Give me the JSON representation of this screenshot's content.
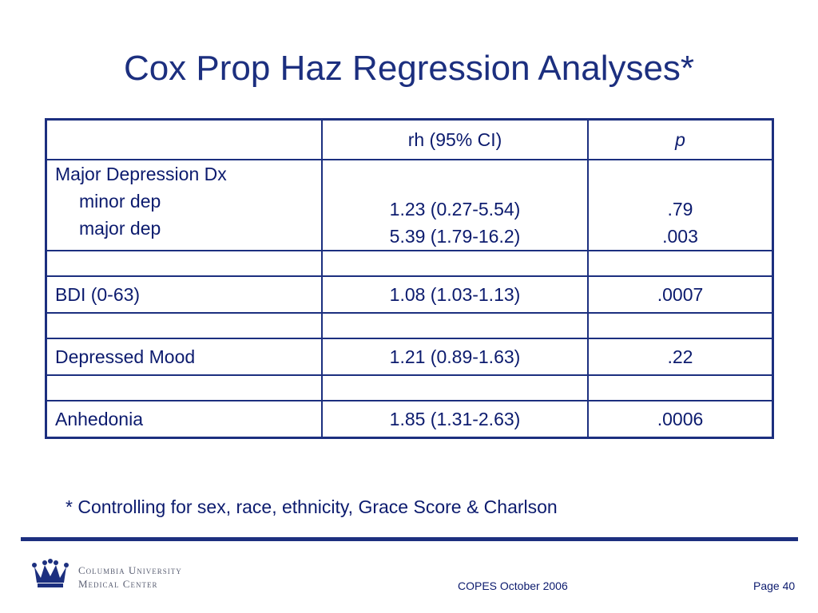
{
  "slide": {
    "title": "Cox Prop Haz Regression Analyses*",
    "footnote": "* Controlling for sex, race, ethnicity, Grace Score & Charlson"
  },
  "table": {
    "header": {
      "blank": "",
      "ci": "rh (95% CI)",
      "p": "p"
    },
    "major_dep_block": {
      "heading": "Major Depression Dx",
      "rows": [
        {
          "label": "minor dep",
          "ci": "1.23 (0.27-5.54)",
          "p": ".79"
        },
        {
          "label": "major dep",
          "ci": "5.39 (1.79-16.2)",
          "p": ".003"
        }
      ]
    },
    "rows": [
      {
        "label": "BDI (0-63)",
        "ci": "1.08 (1.03-1.13)",
        "p": ".0007"
      },
      {
        "label": "Depressed Mood",
        "ci": "1.21 (0.89-1.63)",
        "p": ".22"
      },
      {
        "label": "Anhedonia",
        "ci": "1.85 (1.31-2.63)",
        "p": ".0006"
      }
    ]
  },
  "footer": {
    "logo_line1": "Columbia University",
    "logo_line2": "Medical Center",
    "center": "COPES October 2006",
    "page": "Page 40"
  },
  "colors": {
    "accent": "#1c2f7f",
    "text": "#0c1b6e",
    "logo_text": "#5a5f73"
  },
  "icons": {
    "logo": "crown-icon"
  }
}
